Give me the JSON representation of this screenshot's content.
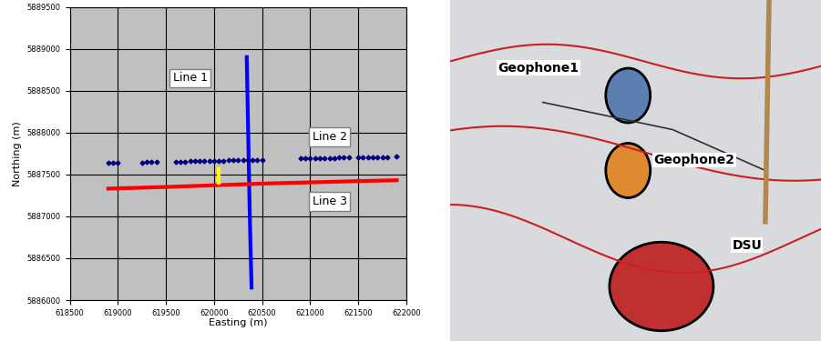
{
  "chart_data": {
    "type": "scatter",
    "x_label": "Easting (m)",
    "y_label": "Northing (m)",
    "xlim": [
      618500,
      622000
    ],
    "xticks": [
      618500,
      619000,
      619500,
      620000,
      620500,
      621000,
      621500,
      622000
    ],
    "ylim": [
      5886000,
      5889500
    ],
    "yticks": [
      5886000,
      5886500,
      5887000,
      5887500,
      5888000,
      5888500,
      5889000,
      5889500
    ],
    "grid": true,
    "series": [
      {
        "name": "Line 1",
        "color": "#0000ff",
        "line_style": "solid",
        "marker": "none",
        "x": [
          620340,
          620350,
          620360,
          620370,
          620380,
          620390
        ],
        "values": [
          5888900,
          5888300,
          5887700,
          5887100,
          5886600,
          5886150
        ]
      },
      {
        "name": "Line 2",
        "color": "#000080",
        "line_style": "none",
        "marker": "diamond",
        "x": [
          618900,
          618950,
          619000,
          619250,
          619300,
          619350,
          619400,
          619600,
          619650,
          619700,
          619750,
          619800,
          619850,
          619900,
          619950,
          620000,
          620050,
          620100,
          620150,
          620200,
          620250,
          620300,
          620350,
          620400,
          620450,
          620500,
          620900,
          620950,
          621000,
          621050,
          621100,
          621150,
          621200,
          621250,
          621300,
          621350,
          621400,
          621500,
          621550,
          621600,
          621650,
          621700,
          621750,
          621800,
          621900
        ],
        "values": [
          5887640,
          5887640,
          5887640,
          5887640,
          5887645,
          5887650,
          5887650,
          5887655,
          5887655,
          5887655,
          5887660,
          5887660,
          5887660,
          5887660,
          5887665,
          5887665,
          5887665,
          5887665,
          5887670,
          5887670,
          5887670,
          5887670,
          5887675,
          5887675,
          5887675,
          5887675,
          5887690,
          5887690,
          5887690,
          5887690,
          5887695,
          5887695,
          5887695,
          5887695,
          5887700,
          5887700,
          5887700,
          5887700,
          5887700,
          5887705,
          5887705,
          5887705,
          5887705,
          5887705,
          5887710
        ]
      },
      {
        "name": "Line 3",
        "color": "#ff0000",
        "line_style": "solid",
        "marker": "none",
        "x": [
          618900,
          619500,
          620000,
          620500,
          621000,
          621500,
          621900
        ],
        "values": [
          5887330,
          5887350,
          5887370,
          5887390,
          5887405,
          5887420,
          5887430
        ]
      },
      {
        "color": "#ffff00",
        "line_style": "solid",
        "marker": "none",
        "x": [
          620050,
          620050
        ],
        "values": [
          5887400,
          5887560
        ]
      }
    ]
  },
  "photo": {
    "labels": [
      "Geophone1",
      "Geophone2",
      "DSU"
    ]
  }
}
